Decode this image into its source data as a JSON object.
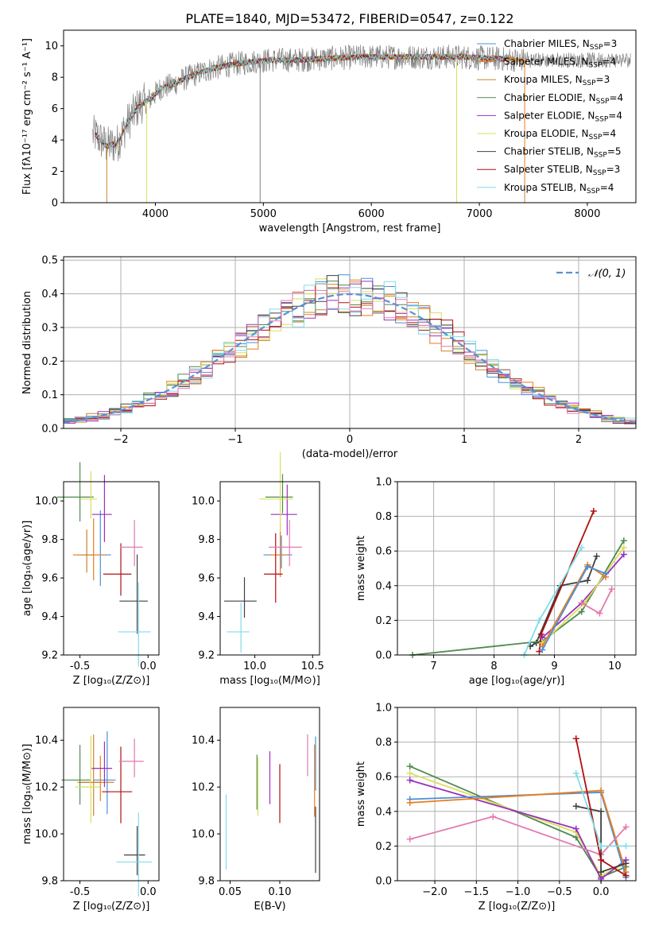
{
  "figure": {
    "title": "PLATE=1840, MJD=53472, FIBERID=0547, z=0.122"
  },
  "chart_data": [
    {
      "id": "spectrum",
      "type": "line",
      "xlabel": "wavelength [Angstrom, rest frame]",
      "ylabel": "Flux [fλ10⁻¹⁷ erg cm⁻² s⁻¹ A⁻¹]",
      "xlim": [
        3150,
        8450
      ],
      "ylim": [
        0,
        11
      ],
      "xticks": [
        4000,
        5000,
        6000,
        7000,
        8000
      ],
      "yticks": [
        0,
        2,
        4,
        6,
        8,
        10
      ],
      "grid": false,
      "legend_position": "right",
      "legend": [
        {
          "name": "Chabrier MILES, N_SSP=3",
          "color": "#4a90d9"
        },
        {
          "name": "Salpeter MILES, N_SSP=4",
          "color": "#e87d1e"
        },
        {
          "name": "Kroupa MILES, N_SSP=3",
          "color": "#c9852c"
        },
        {
          "name": "Chabrier ELODIE, N_SSP=4",
          "color": "#4f8a4f"
        },
        {
          "name": "Salpeter ELODIE, N_SSP=4",
          "color": "#9b30c0"
        },
        {
          "name": "Kroupa ELODIE, N_SSP=4",
          "color": "#d8e05a"
        },
        {
          "name": "Chabrier STELIB, N_SSP=5",
          "color": "#404040"
        },
        {
          "name": "Salpeter STELIB, N_SSP=3",
          "color": "#b01010"
        },
        {
          "name": "Kroupa STELIB, N_SSP=4",
          "color": "#80dde8"
        }
      ],
      "data_trend": {
        "x": [
          3450,
          3550,
          3650,
          3750,
          3850,
          3950,
          4050,
          4150,
          4300,
          4500,
          4700,
          4900,
          5100,
          5300,
          5600,
          5900,
          6200,
          6500,
          6800,
          7100,
          7400
        ],
        "y": [
          4.3,
          3.6,
          3.8,
          5.2,
          6.2,
          6.6,
          7.3,
          7.5,
          8.0,
          8.5,
          8.8,
          9.0,
          9.1,
          9.1,
          9.2,
          9.3,
          9.3,
          9.3,
          9.3,
          9.2,
          9.1
        ]
      }
    },
    {
      "id": "residuals",
      "type": "line",
      "xlabel": "(data-model)/error",
      "ylabel": "Normed distribution",
      "xlim": [
        -2.5,
        2.5
      ],
      "ylim": [
        0,
        0.51
      ],
      "xticks": [
        -2,
        -1,
        0,
        1,
        2
      ],
      "yticks": [
        0.0,
        0.1,
        0.2,
        0.3,
        0.4,
        0.5
      ],
      "grid": true,
      "legend": [
        {
          "name": "𝒩(0, 1)",
          "color": "#5b8fd6",
          "style": "dashed"
        }
      ],
      "series": [
        {
          "name": "Normal(0,1)",
          "function": "gaussian",
          "mu": 0,
          "sigma": 1
        }
      ]
    },
    {
      "id": "age_vs_Z",
      "type": "scatter",
      "xlabel": "Z [log₁₀(Z/Z⊙)]",
      "ylabel": "age  [log₁₀(age/yr)]",
      "xlim": [
        -0.62,
        0.08
      ],
      "ylim": [
        9.2,
        10.1
      ],
      "xticks": [
        -0.5,
        0.0
      ],
      "yticks": [
        9.2,
        9.4,
        9.6,
        9.8,
        10.0
      ],
      "points": [
        {
          "model": "Chabrier MILES",
          "x": -0.35,
          "y": 9.72
        },
        {
          "model": "Salpeter MILES",
          "x": -0.4,
          "y": 9.72
        },
        {
          "model": "Kroupa MILES",
          "x": -0.45,
          "y": 9.72
        },
        {
          "model": "Chabrier ELODIE",
          "x": -0.5,
          "y": 10.02
        },
        {
          "model": "Salpeter ELODIE",
          "x": -0.32,
          "y": 9.93
        },
        {
          "model": "Kroupa ELODIE",
          "x": -0.42,
          "y": 10.01
        },
        {
          "model": "Chabrier STELIB",
          "x": -0.08,
          "y": 9.48
        },
        {
          "model": "Salpeter STELIB",
          "x": -0.2,
          "y": 9.62
        },
        {
          "model": "Kroupa STELIB",
          "x": -0.07,
          "y": 9.32
        },
        {
          "model": "Salpeter MILES (pink)",
          "x": -0.1,
          "y": 9.76
        }
      ]
    },
    {
      "id": "age_vs_mass",
      "type": "scatter",
      "xlabel": "mass [log₁₀(M/M⊙)]",
      "ylabel": "",
      "xlim": [
        9.7,
        10.56
      ],
      "ylim": [
        9.2,
        10.1
      ],
      "xticks": [
        10.0,
        10.5
      ],
      "yticks": [
        9.2,
        9.4,
        9.6,
        9.8,
        10.0
      ],
      "points": [
        {
          "model": "Chabrier MILES",
          "x": 10.23,
          "y": 9.72
        },
        {
          "model": "Salpeter MILES",
          "x": 10.22,
          "y": 9.72
        },
        {
          "model": "Chabrier ELODIE",
          "x": 10.24,
          "y": 10.02
        },
        {
          "model": "Salpeter ELODIE",
          "x": 10.28,
          "y": 9.93
        },
        {
          "model": "Kroupa ELODIE",
          "x": 10.22,
          "y": 10.01
        },
        {
          "model": "Chabrier STELIB",
          "x": 9.91,
          "y": 9.48
        },
        {
          "model": "Salpeter STELIB",
          "x": 10.18,
          "y": 9.62
        },
        {
          "model": "Kroupa STELIB",
          "x": 9.88,
          "y": 9.32
        },
        {
          "model": "pink",
          "x": 10.3,
          "y": 9.76
        }
      ]
    },
    {
      "id": "weight_vs_age",
      "type": "line",
      "xlabel": "age  [log₁₀(age/yr)]",
      "ylabel": "mass weight",
      "xlim": [
        6.4,
        10.35
      ],
      "ylim": [
        0,
        1.0
      ],
      "xticks": [
        7,
        8,
        9,
        10
      ],
      "yticks": [
        0.0,
        0.2,
        0.4,
        0.6,
        0.8,
        1.0
      ],
      "grid": true,
      "series": [
        {
          "name": "Chabrier STELIB",
          "color": "#404040",
          "x": [
            8.6,
            8.7,
            9.1,
            9.55,
            9.7
          ],
          "y": [
            0.05,
            0.07,
            0.4,
            0.43,
            0.57
          ]
        },
        {
          "name": "Chabrier ELODIE",
          "color": "#4f8a4f",
          "x": [
            6.65,
            8.8,
            9.45,
            10.15
          ],
          "y": [
            0.0,
            0.08,
            0.25,
            0.66
          ]
        },
        {
          "name": "Salpeter STELIB",
          "color": "#b01010",
          "x": [
            8.75,
            8.78,
            9.65
          ],
          "y": [
            0.02,
            0.12,
            0.83
          ]
        },
        {
          "name": "Kroupa STELIB",
          "color": "#80dde8",
          "x": [
            8.5,
            8.75,
            9.45
          ],
          "y": [
            0.0,
            0.2,
            0.62
          ]
        },
        {
          "name": "Salpeter ELODIE",
          "color": "#9b30c0",
          "x": [
            8.8,
            9.45,
            10.15
          ],
          "y": [
            0.1,
            0.3,
            0.58
          ]
        },
        {
          "name": "Kroupa ELODIE",
          "color": "#d8e05a",
          "x": [
            8.8,
            9.5,
            10.15
          ],
          "y": [
            0.07,
            0.3,
            0.62
          ]
        },
        {
          "name": "Salpeter MILES",
          "color": "#e87d1e",
          "x": [
            8.8,
            9.55,
            9.85
          ],
          "y": [
            0.05,
            0.52,
            0.45
          ]
        },
        {
          "name": "Chabrier MILES",
          "color": "#4a90d9",
          "x": [
            8.8,
            9.55,
            9.85
          ],
          "y": [
            0.03,
            0.51,
            0.47
          ]
        },
        {
          "name": "pink",
          "color": "#e27ab0",
          "x": [
            9.45,
            9.75,
            9.95
          ],
          "y": [
            0.3,
            0.24,
            0.38
          ]
        }
      ]
    },
    {
      "id": "mass_vs_Z",
      "type": "scatter",
      "xlabel": "Z [log₁₀(Z/Z⊙)]",
      "ylabel": "mass [log₁₀(M/M⊙)]",
      "xlim": [
        -0.62,
        0.08
      ],
      "ylim": [
        9.8,
        10.54
      ],
      "xticks": [
        -0.5,
        0.0
      ],
      "yticks": [
        9.8,
        10.0,
        10.2,
        10.4
      ],
      "points": [
        {
          "model": "Chabrier MILES",
          "x": -0.3,
          "y": 10.23
        },
        {
          "model": "Salpeter MILES",
          "x": -0.35,
          "y": 10.22
        },
        {
          "model": "Kroupa MILES",
          "x": -0.4,
          "y": 10.22
        },
        {
          "model": "Chabrier ELODIE",
          "x": -0.5,
          "y": 10.23
        },
        {
          "model": "Salpeter ELODIE",
          "x": -0.32,
          "y": 10.28
        },
        {
          "model": "Kroupa ELODIE",
          "x": -0.42,
          "y": 10.2
        },
        {
          "model": "Chabrier STELIB",
          "x": -0.08,
          "y": 9.91
        },
        {
          "model": "Salpeter STELIB",
          "x": -0.2,
          "y": 10.18
        },
        {
          "model": "Kroupa STELIB",
          "x": -0.07,
          "y": 9.88
        },
        {
          "model": "pink",
          "x": -0.1,
          "y": 10.31
        }
      ]
    },
    {
      "id": "mass_vs_ebv",
      "type": "scatter",
      "xlabel": "E(B-V)",
      "ylabel": "",
      "xlim": [
        0.04,
        0.14
      ],
      "ylim": [
        9.8,
        10.54
      ],
      "xticks": [
        0.05,
        0.1
      ],
      "yticks": [
        9.8,
        10.0,
        10.2,
        10.4
      ],
      "points": [
        {
          "model": "Kroupa STELIB",
          "x": 0.046,
          "y": 9.98
        },
        {
          "model": "Chabrier ELODIE",
          "x": 0.077,
          "y": 10.2
        },
        {
          "model": "Kroupa ELODIE",
          "x": 0.078,
          "y": 10.18
        },
        {
          "model": "Salpeter ELODIE",
          "x": 0.09,
          "y": 10.22
        },
        {
          "model": "Salpeter STELIB",
          "x": 0.1,
          "y": 10.15
        },
        {
          "model": "pink",
          "x": 0.128,
          "y": 10.32
        },
        {
          "model": "Chabrier MILES",
          "x": 0.136,
          "y": 10.28
        },
        {
          "model": "Salpeter MILES",
          "x": 0.135,
          "y": 10.2
        },
        {
          "model": "Chabrier STELIB",
          "x": 0.136,
          "y": 9.95
        }
      ]
    },
    {
      "id": "weight_vs_Z",
      "type": "line",
      "xlabel": "Z [log₁₀(Z/Z⊙)]",
      "ylabel": "mass weight",
      "xlim": [
        -2.45,
        0.42
      ],
      "ylim": [
        0,
        1.0
      ],
      "xticks": [
        -2.0,
        -1.5,
        -1.0,
        -0.5,
        0.0
      ],
      "yticks": [
        0.0,
        0.2,
        0.4,
        0.6,
        0.8,
        1.0
      ],
      "grid": true,
      "series": [
        {
          "name": "Chabrier ELODIE",
          "color": "#4f8a4f",
          "x": [
            -2.3,
            -0.3,
            0.0,
            0.3
          ],
          "y": [
            0.66,
            0.25,
            0.02,
            0.08
          ]
        },
        {
          "name": "Kroupa ELODIE",
          "color": "#d8e05a",
          "x": [
            -2.3,
            -0.3,
            0.0,
            0.3
          ],
          "y": [
            0.62,
            0.28,
            0.03,
            0.1
          ]
        },
        {
          "name": "Salpeter ELODIE",
          "color": "#9b30c0",
          "x": [
            -2.3,
            -0.3,
            0.0,
            0.3
          ],
          "y": [
            0.58,
            0.3,
            0.01,
            0.12
          ]
        },
        {
          "name": "Chabrier MILES",
          "color": "#4a90d9",
          "x": [
            -2.3,
            0.0,
            0.3
          ],
          "y": [
            0.47,
            0.51,
            0.02
          ]
        },
        {
          "name": "Salpeter MILES",
          "color": "#e87d1e",
          "x": [
            -2.3,
            0.0,
            0.3
          ],
          "y": [
            0.45,
            0.52,
            0.05
          ]
        },
        {
          "name": "pink",
          "color": "#e27ab0",
          "x": [
            -2.3,
            -1.3,
            0.0,
            0.3
          ],
          "y": [
            0.24,
            0.37,
            0.15,
            0.31
          ]
        },
        {
          "name": "Chabrier STELIB",
          "color": "#404040",
          "x": [
            -0.3,
            0.0,
            0.0,
            0.3
          ],
          "y": [
            0.43,
            0.4,
            0.05,
            0.1
          ]
        },
        {
          "name": "Salpeter STELIB",
          "color": "#b01010",
          "x": [
            -0.3,
            0.0,
            0.3
          ],
          "y": [
            0.82,
            0.12,
            0.03
          ]
        },
        {
          "name": "Kroupa STELIB",
          "color": "#80dde8",
          "x": [
            -0.3,
            0.0,
            0.3
          ],
          "y": [
            0.62,
            0.2,
            0.2
          ]
        }
      ]
    }
  ]
}
